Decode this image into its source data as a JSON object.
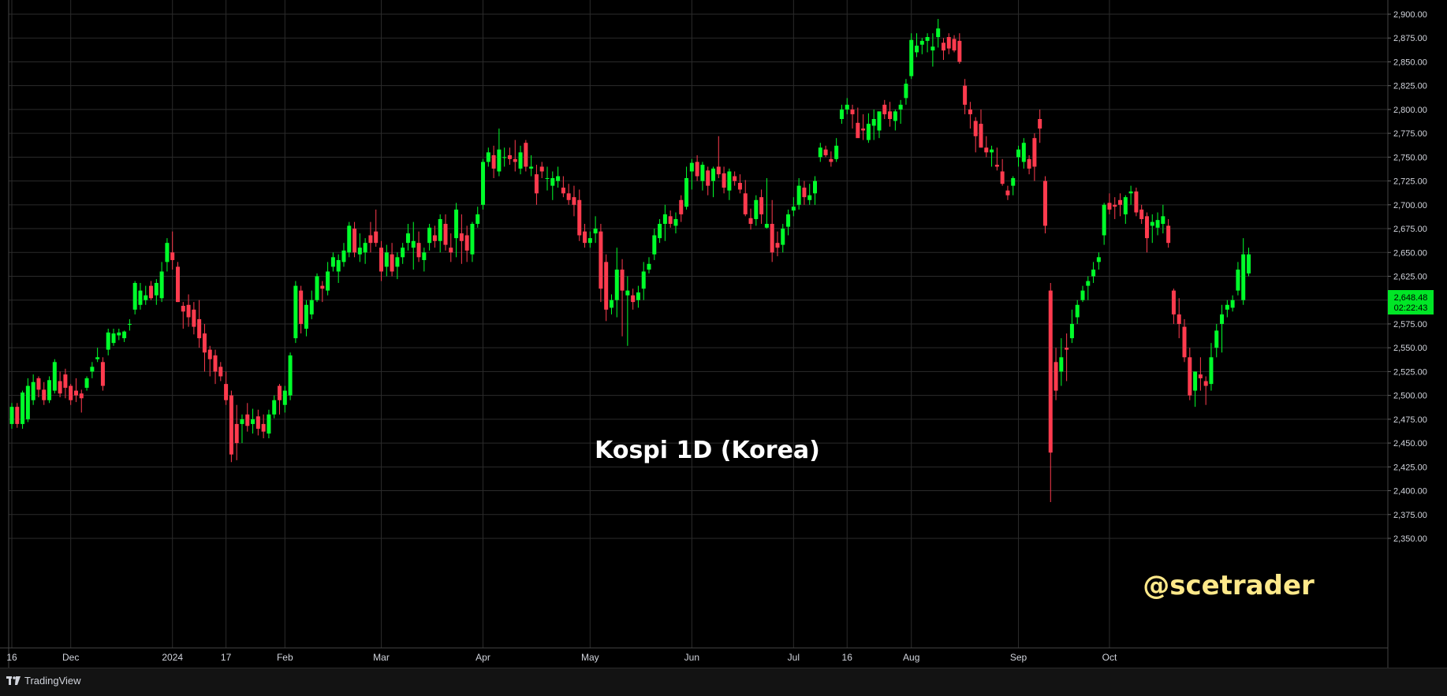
{
  "app": {
    "brand": "TradingView"
  },
  "overlay": {
    "title": "Kospi 1D (Korea)",
    "watermark": "@scetrader"
  },
  "colors": {
    "background": "#000000",
    "grid": "#2b2b2b",
    "up": "#00ff2a",
    "down": "#ff3b4e",
    "axis_text": "#d1d4dc",
    "watermark": "#ffe98a",
    "price_tag_bg": "#00e626"
  },
  "price_tag": {
    "price": "2,648.48",
    "countdown": "02:22:43"
  },
  "chart_data": {
    "type": "candlestick",
    "title": "Kospi 1D (Korea)",
    "xlabel": "",
    "ylabel": "",
    "ylim": [
      2330,
      2910
    ],
    "grid": true,
    "y_ticks": [
      "2,900.00",
      "2,875.00",
      "2,850.00",
      "2,825.00",
      "2,800.00",
      "2,775.00",
      "2,750.00",
      "2,725.00",
      "2,700.00",
      "2,675.00",
      "2,650.00",
      "2,625.00",
      "2,600.00",
      "2,575.00",
      "2,550.00",
      "2,525.00",
      "2,500.00",
      "2,475.00",
      "2,450.00",
      "2,425.00",
      "2,400.00",
      "2,375.00",
      "2,350.00"
    ],
    "x_ticks": [
      {
        "label": "16",
        "bar": 0
      },
      {
        "label": "Dec",
        "bar": 11
      },
      {
        "label": "2024",
        "bar": 30
      },
      {
        "label": "17",
        "bar": 40
      },
      {
        "label": "Feb",
        "bar": 51
      },
      {
        "label": "Mar",
        "bar": 69
      },
      {
        "label": "Apr",
        "bar": 88
      },
      {
        "label": "May",
        "bar": 108
      },
      {
        "label": "Jun",
        "bar": 127
      },
      {
        "label": "Jul",
        "bar": 146
      },
      {
        "label": "16",
        "bar": 156
      },
      {
        "label": "Aug",
        "bar": 168
      },
      {
        "label": "Sep",
        "bar": 188
      },
      {
        "label": "Oct",
        "bar": 205
      }
    ],
    "candles": [
      [
        2470,
        2492,
        2465,
        2488
      ],
      [
        2488,
        2492,
        2466,
        2470
      ],
      [
        2470,
        2505,
        2465,
        2503
      ],
      [
        2475,
        2518,
        2472,
        2510
      ],
      [
        2495,
        2522,
        2490,
        2514
      ],
      [
        2518,
        2520,
        2498,
        2506
      ],
      [
        2506,
        2514,
        2490,
        2495
      ],
      [
        2495,
        2520,
        2492,
        2516
      ],
      [
        2505,
        2538,
        2502,
        2535
      ],
      [
        2515,
        2525,
        2498,
        2502
      ],
      [
        2522,
        2528,
        2497,
        2508
      ],
      [
        2510,
        2512,
        2490,
        2495
      ],
      [
        2505,
        2518,
        2493,
        2500
      ],
      [
        2502,
        2506,
        2482,
        2497
      ],
      [
        2508,
        2520,
        2505,
        2518
      ],
      [
        2525,
        2535,
        2518,
        2530
      ],
      [
        2538,
        2550,
        2535,
        2540
      ],
      [
        2535,
        2540,
        2505,
        2510
      ],
      [
        2548,
        2570,
        2542,
        2566
      ],
      [
        2555,
        2570,
        2552,
        2565
      ],
      [
        2563,
        2570,
        2558,
        2566
      ],
      [
        2560,
        2568,
        2556,
        2567
      ],
      [
        2575,
        2580,
        2568,
        2575
      ],
      [
        2590,
        2620,
        2585,
        2618
      ],
      [
        2595,
        2618,
        2590,
        2610
      ],
      [
        2600,
        2615,
        2595,
        2605
      ],
      [
        2615,
        2620,
        2600,
        2602
      ],
      [
        2605,
        2622,
        2595,
        2618
      ],
      [
        2602,
        2640,
        2598,
        2630
      ],
      [
        2640,
        2665,
        2630,
        2660
      ],
      [
        2650,
        2672,
        2632,
        2642
      ],
      [
        2635,
        2640,
        2598,
        2598
      ],
      [
        2594,
        2598,
        2570,
        2588
      ],
      [
        2595,
        2606,
        2572,
        2582
      ],
      [
        2590,
        2598,
        2564,
        2572
      ],
      [
        2580,
        2600,
        2550,
        2560
      ],
      [
        2565,
        2575,
        2525,
        2545
      ],
      [
        2548,
        2552,
        2520,
        2538
      ],
      [
        2542,
        2548,
        2512,
        2525
      ],
      [
        2530,
        2535,
        2515,
        2520
      ],
      [
        2512,
        2525,
        2490,
        2495
      ],
      [
        2500,
        2505,
        2430,
        2438
      ],
      [
        2470,
        2490,
        2432,
        2450
      ],
      [
        2470,
        2480,
        2450,
        2475
      ],
      [
        2480,
        2492,
        2462,
        2468
      ],
      [
        2470,
        2486,
        2460,
        2475
      ],
      [
        2478,
        2485,
        2458,
        2465
      ],
      [
        2470,
        2480,
        2455,
        2462
      ],
      [
        2460,
        2485,
        2455,
        2480
      ],
      [
        2480,
        2500,
        2476,
        2495
      ],
      [
        2510,
        2512,
        2480,
        2495
      ],
      [
        2490,
        2510,
        2482,
        2505
      ],
      [
        2500,
        2545,
        2495,
        2542
      ],
      [
        2560,
        2620,
        2555,
        2615
      ],
      [
        2610,
        2615,
        2565,
        2575
      ],
      [
        2570,
        2600,
        2562,
        2595
      ],
      [
        2585,
        2610,
        2580,
        2600
      ],
      [
        2600,
        2628,
        2598,
        2625
      ],
      [
        2615,
        2620,
        2598,
        2612
      ],
      [
        2610,
        2640,
        2605,
        2630
      ],
      [
        2635,
        2650,
        2630,
        2645
      ],
      [
        2630,
        2648,
        2618,
        2642
      ],
      [
        2640,
        2660,
        2635,
        2652
      ],
      [
        2650,
        2682,
        2645,
        2678
      ],
      [
        2675,
        2682,
        2645,
        2650
      ],
      [
        2648,
        2670,
        2640,
        2655
      ],
      [
        2650,
        2665,
        2638,
        2660
      ],
      [
        2668,
        2682,
        2650,
        2660
      ],
      [
        2672,
        2695,
        2656,
        2660
      ],
      [
        2655,
        2662,
        2620,
        2630
      ],
      [
        2635,
        2658,
        2625,
        2650
      ],
      [
        2648,
        2660,
        2625,
        2630
      ],
      [
        2635,
        2650,
        2622,
        2645
      ],
      [
        2645,
        2660,
        2638,
        2655
      ],
      [
        2660,
        2680,
        2652,
        2670
      ],
      [
        2655,
        2682,
        2632,
        2662
      ],
      [
        2660,
        2672,
        2640,
        2645
      ],
      [
        2642,
        2655,
        2630,
        2650
      ],
      [
        2660,
        2680,
        2652,
        2676
      ],
      [
        2668,
        2678,
        2655,
        2662
      ],
      [
        2662,
        2690,
        2650,
        2685
      ],
      [
        2680,
        2690,
        2652,
        2658
      ],
      [
        2655,
        2670,
        2640,
        2650
      ],
      [
        2665,
        2702,
        2645,
        2695
      ],
      [
        2670,
        2690,
        2638,
        2662
      ],
      [
        2668,
        2678,
        2640,
        2652
      ],
      [
        2648,
        2682,
        2640,
        2680
      ],
      [
        2680,
        2698,
        2676,
        2690
      ],
      [
        2700,
        2748,
        2695,
        2745
      ],
      [
        2745,
        2760,
        2740,
        2755
      ],
      [
        2752,
        2762,
        2728,
        2738
      ],
      [
        2735,
        2780,
        2730,
        2758
      ],
      [
        2750,
        2760,
        2740,
        2750
      ],
      [
        2752,
        2760,
        2742,
        2748
      ],
      [
        2748,
        2768,
        2735,
        2745
      ],
      [
        2738,
        2762,
        2732,
        2755
      ],
      [
        2765,
        2768,
        2735,
        2740
      ],
      [
        2738,
        2752,
        2730,
        2740
      ],
      [
        2732,
        2742,
        2700,
        2712
      ],
      [
        2740,
        2745,
        2728,
        2735
      ],
      [
        2728,
        2740,
        2715,
        2728
      ],
      [
        2720,
        2735,
        2705,
        2728
      ],
      [
        2725,
        2740,
        2718,
        2730
      ],
      [
        2718,
        2730,
        2708,
        2712
      ],
      [
        2712,
        2722,
        2700,
        2705
      ],
      [
        2708,
        2720,
        2688,
        2700
      ],
      [
        2705,
        2716,
        2662,
        2668
      ],
      [
        2672,
        2680,
        2655,
        2660
      ],
      [
        2660,
        2672,
        2655,
        2665
      ],
      [
        2670,
        2688,
        2660,
        2675
      ],
      [
        2672,
        2680,
        2598,
        2612
      ],
      [
        2640,
        2648,
        2578,
        2590
      ],
      [
        2592,
        2606,
        2585,
        2600
      ],
      [
        2600,
        2655,
        2582,
        2632
      ],
      [
        2632,
        2643,
        2562,
        2610
      ],
      [
        2605,
        2625,
        2552,
        2610
      ],
      [
        2605,
        2612,
        2590,
        2598
      ],
      [
        2600,
        2615,
        2592,
        2608
      ],
      [
        2612,
        2640,
        2600,
        2630
      ],
      [
        2632,
        2645,
        2628,
        2638
      ],
      [
        2648,
        2675,
        2642,
        2668
      ],
      [
        2665,
        2685,
        2660,
        2680
      ],
      [
        2680,
        2700,
        2662,
        2690
      ],
      [
        2688,
        2694,
        2676,
        2680
      ],
      [
        2678,
        2692,
        2670,
        2685
      ],
      [
        2705,
        2710,
        2682,
        2690
      ],
      [
        2698,
        2740,
        2695,
        2728
      ],
      [
        2735,
        2748,
        2716,
        2744
      ],
      [
        2745,
        2752,
        2725,
        2730
      ],
      [
        2725,
        2745,
        2715,
        2742
      ],
      [
        2736,
        2740,
        2710,
        2720
      ],
      [
        2725,
        2740,
        2708,
        2738
      ],
      [
        2740,
        2772,
        2728,
        2732
      ],
      [
        2733,
        2740,
        2712,
        2718
      ],
      [
        2715,
        2738,
        2705,
        2735
      ],
      [
        2730,
        2735,
        2720,
        2725
      ],
      [
        2723,
        2732,
        2712,
        2716
      ],
      [
        2712,
        2726,
        2688,
        2690
      ],
      [
        2686,
        2696,
        2674,
        2680
      ],
      [
        2685,
        2710,
        2678,
        2705
      ],
      [
        2708,
        2716,
        2680,
        2690
      ],
      [
        2676,
        2728,
        2675,
        2680
      ],
      [
        2680,
        2705,
        2640,
        2650
      ],
      [
        2660,
        2672,
        2646,
        2655
      ],
      [
        2658,
        2680,
        2650,
        2675
      ],
      [
        2677,
        2695,
        2668,
        2690
      ],
      [
        2694,
        2708,
        2688,
        2698
      ],
      [
        2700,
        2728,
        2695,
        2720
      ],
      [
        2718,
        2725,
        2700,
        2708
      ],
      [
        2705,
        2722,
        2700,
        2710
      ],
      [
        2712,
        2730,
        2700,
        2725
      ],
      [
        2750,
        2765,
        2745,
        2760
      ],
      [
        2758,
        2762,
        2750,
        2752
      ],
      [
        2748,
        2756,
        2740,
        2745
      ],
      [
        2748,
        2770,
        2745,
        2762
      ],
      [
        2790,
        2805,
        2785,
        2800
      ],
      [
        2800,
        2812,
        2795,
        2805
      ],
      [
        2800,
        2805,
        2780,
        2795
      ],
      [
        2786,
        2802,
        2775,
        2770
      ],
      [
        2780,
        2795,
        2768,
        2778
      ],
      [
        2768,
        2796,
        2765,
        2785
      ],
      [
        2783,
        2800,
        2768,
        2790
      ],
      [
        2778,
        2795,
        2770,
        2798
      ],
      [
        2805,
        2810,
        2790,
        2795
      ],
      [
        2798,
        2808,
        2782,
        2790
      ],
      [
        2788,
        2800,
        2778,
        2798
      ],
      [
        2800,
        2810,
        2785,
        2805
      ],
      [
        2812,
        2832,
        2805,
        2827
      ],
      [
        2835,
        2880,
        2832,
        2873
      ],
      [
        2860,
        2880,
        2855,
        2867
      ],
      [
        2868,
        2875,
        2858,
        2872
      ],
      [
        2872,
        2880,
        2860,
        2876
      ],
      [
        2862,
        2880,
        2845,
        2866
      ],
      [
        2876,
        2895,
        2865,
        2885
      ],
      [
        2870,
        2875,
        2852,
        2862
      ],
      [
        2876,
        2880,
        2858,
        2864
      ],
      [
        2874,
        2878,
        2860,
        2862
      ],
      [
        2872,
        2880,
        2848,
        2850
      ],
      [
        2825,
        2832,
        2795,
        2805
      ],
      [
        2800,
        2808,
        2780,
        2795
      ],
      [
        2788,
        2792,
        2755,
        2772
      ],
      [
        2785,
        2800,
        2760,
        2760
      ],
      [
        2760,
        2772,
        2750,
        2755
      ],
      [
        2755,
        2762,
        2740,
        2758
      ],
      [
        2742,
        2760,
        2736,
        2740
      ],
      [
        2735,
        2748,
        2720,
        2722
      ],
      [
        2715,
        2720,
        2705,
        2710
      ],
      [
        2720,
        2730,
        2710,
        2728
      ],
      [
        2750,
        2762,
        2740,
        2758
      ],
      [
        2745,
        2770,
        2738,
        2765
      ],
      [
        2748,
        2752,
        2732,
        2738
      ],
      [
        2770,
        2775,
        2725,
        2740
      ],
      [
        2790,
        2800,
        2765,
        2780
      ],
      [
        2725,
        2730,
        2670,
        2678
      ],
      [
        2610,
        2618,
        2388,
        2440
      ],
      [
        2535,
        2550,
        2495,
        2505
      ],
      [
        2525,
        2560,
        2510,
        2540
      ],
      [
        2550,
        2565,
        2515,
        2548
      ],
      [
        2560,
        2590,
        2555,
        2575
      ],
      [
        2582,
        2600,
        2575,
        2595
      ],
      [
        2600,
        2615,
        2598,
        2610
      ],
      [
        2615,
        2625,
        2600,
        2620
      ],
      [
        2625,
        2640,
        2618,
        2632
      ],
      [
        2640,
        2650,
        2632,
        2645
      ],
      [
        2668,
        2702,
        2658,
        2700
      ],
      [
        2702,
        2712,
        2690,
        2695
      ],
      [
        2700,
        2708,
        2685,
        2698
      ],
      [
        2705,
        2712,
        2688,
        2700
      ],
      [
        2690,
        2710,
        2680,
        2708
      ],
      [
        2712,
        2720,
        2700,
        2714
      ],
      [
        2714,
        2718,
        2688,
        2692
      ],
      [
        2695,
        2700,
        2680,
        2685
      ],
      [
        2688,
        2692,
        2650,
        2665
      ],
      [
        2678,
        2690,
        2660,
        2682
      ],
      [
        2676,
        2692,
        2668,
        2684
      ],
      [
        2680,
        2700,
        2670,
        2688
      ],
      [
        2678,
        2685,
        2655,
        2660
      ],
      [
        2610,
        2612,
        2575,
        2585
      ],
      [
        2585,
        2602,
        2560,
        2575
      ],
      [
        2572,
        2580,
        2535,
        2540
      ],
      [
        2540,
        2550,
        2495,
        2500
      ],
      [
        2505,
        2525,
        2488,
        2525
      ],
      [
        2522,
        2540,
        2505,
        2518
      ],
      [
        2515,
        2520,
        2490,
        2510
      ],
      [
        2512,
        2555,
        2505,
        2540
      ],
      [
        2550,
        2575,
        2540,
        2568
      ],
      [
        2575,
        2595,
        2545,
        2585
      ],
      [
        2590,
        2600,
        2582,
        2595
      ],
      [
        2592,
        2605,
        2588,
        2600
      ],
      [
        2610,
        2640,
        2605,
        2632
      ],
      [
        2600,
        2665,
        2595,
        2648
      ],
      [
        2628,
        2655,
        2625,
        2648
      ]
    ]
  }
}
